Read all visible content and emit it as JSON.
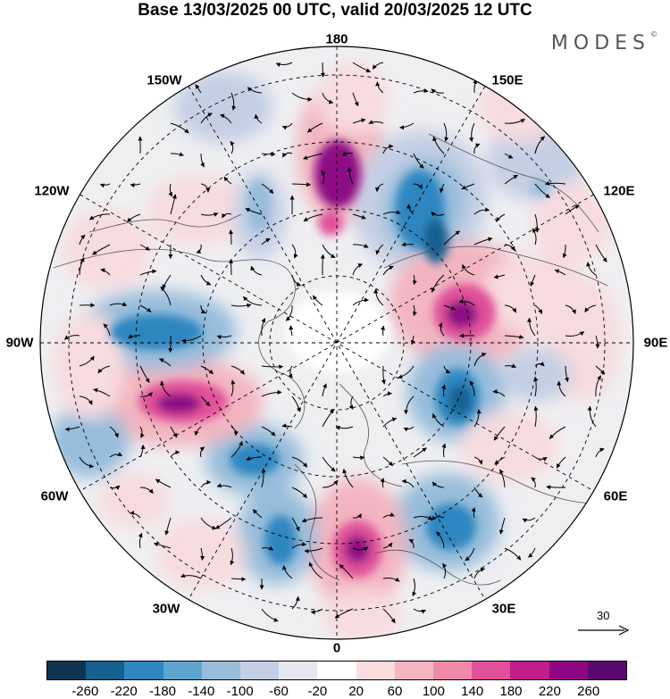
{
  "title": "Base 13/03/2025 00 UTC, valid 20/03/2025 12 UTC",
  "brand": "MODES",
  "brand_mark": "©",
  "geo_labels": {
    "top": "180",
    "bottom": "0",
    "left": "90W",
    "right": "90E",
    "nw1": "150W",
    "nw2": "120W",
    "ne1": "150E",
    "ne2": "120E",
    "sw1": "60W",
    "sw2": "30W",
    "se1": "60E",
    "se2": "30E"
  },
  "reference_vector": "30",
  "colorbar": {
    "colors": [
      "#0d3550",
      "#15608f",
      "#2f86c0",
      "#5ea4cf",
      "#97bddb",
      "#c4cfe4",
      "#e6e7f1",
      "#ffffff",
      "#f8dcdf",
      "#f3b5c0",
      "#ee8aa8",
      "#e1519a",
      "#c01e8a",
      "#8d0784",
      "#5a0a6e"
    ],
    "ticks": [
      "-260",
      "-220",
      "-180",
      "-140",
      "-100",
      "-60",
      "-20",
      "20",
      "60",
      "100",
      "140",
      "180",
      "220",
      "260"
    ]
  },
  "map_colors": {
    "ocean_bg": "#f2f2f3",
    "blue_light": "#c4cfe4",
    "blue_mid": "#97bddb",
    "blue_strong": "#2f86c0",
    "blue_deep": "#15608f",
    "pink_light": "#f8dcdf",
    "pink_mid": "#f3b5c0",
    "pink_strong": "#e1519a",
    "pink_deep": "#8d0784"
  }
}
